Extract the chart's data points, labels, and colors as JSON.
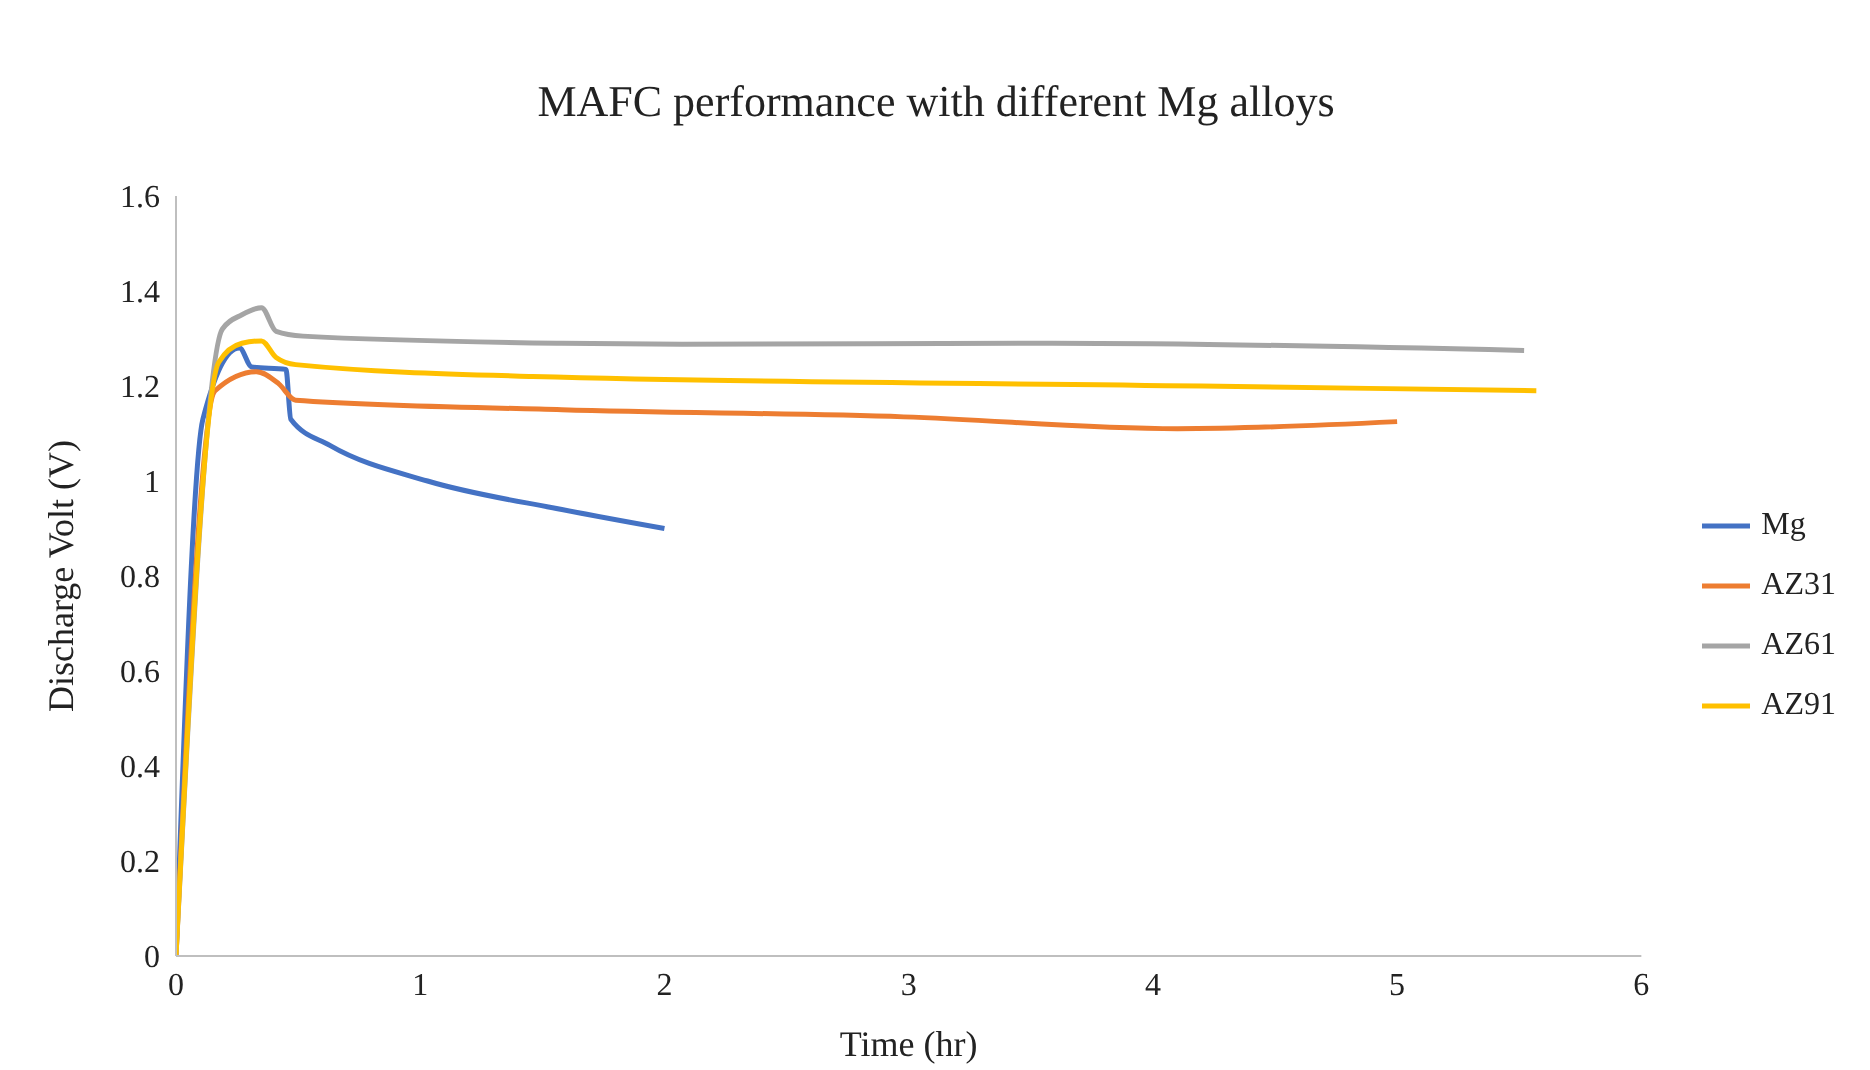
{
  "chart_data": {
    "type": "line",
    "title": "MAFC performance with different Mg alloys",
    "xlabel": "Time (hr)",
    "ylabel": "Discharge Volt (V)",
    "xlim": [
      0,
      6
    ],
    "xticks": [
      0,
      1,
      2,
      3,
      4,
      5,
      6
    ],
    "ylim": [
      0,
      1.6
    ],
    "yticks": [
      0,
      0.2,
      0.4,
      0.6,
      0.8,
      1,
      1.2,
      1.4,
      1.6
    ],
    "grid": false,
    "legend": "right",
    "marker": "none",
    "line_style": "solid",
    "series": [
      {
        "name": "Mg",
        "color": "#4472c4",
        "x": [
          0,
          0.11,
          0.26,
          0.31,
          0.45,
          0.47,
          0.63,
          1.03,
          1.58,
          2
        ],
        "values": [
          0,
          1.13,
          1.28,
          1.24,
          1.235,
          1.13,
          1.075,
          1.0,
          0.94,
          0.9
        ]
      },
      {
        "name": "AZ31",
        "color": "#ed7d31",
        "x": [
          0,
          0.16,
          0.33,
          0.42,
          0.49,
          1.58,
          2.98,
          4.1,
          5.0
        ],
        "values": [
          0,
          1.19,
          1.23,
          1.205,
          1.17,
          1.15,
          1.135,
          1.11,
          1.125
        ]
      },
      {
        "name": "AZ61",
        "color": "#a5a5a5",
        "x": [
          0,
          0.19,
          0.27,
          0.35,
          0.41,
          0.52,
          1.58,
          2.07,
          3.59,
          5.52
        ],
        "values": [
          0,
          1.32,
          1.35,
          1.365,
          1.315,
          1.305,
          1.29,
          1.288,
          1.29,
          1.275
        ]
      },
      {
        "name": "AZ91",
        "color": "#ffc000",
        "x": [
          0,
          0.175,
          0.27,
          0.35,
          0.41,
          0.49,
          1.46,
          4.2,
          5.57
        ],
        "values": [
          0,
          1.25,
          1.29,
          1.295,
          1.26,
          1.245,
          1.22,
          1.2,
          1.19
        ]
      }
    ]
  }
}
